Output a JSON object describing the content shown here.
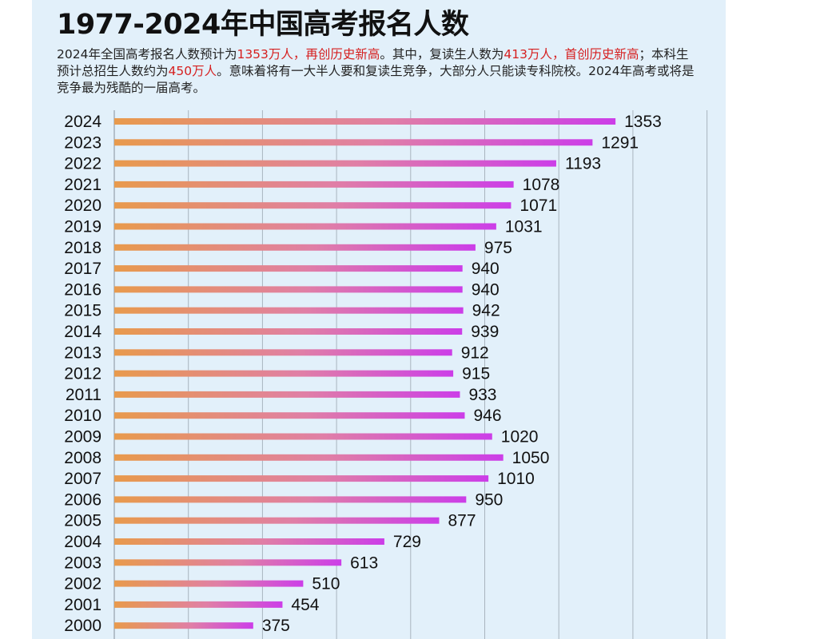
{
  "title": "1977-2024年中国高考报名人数",
  "description": {
    "parts": [
      {
        "text": "2024年全国高考报名人数预计为",
        "highlight": false
      },
      {
        "text": "1353万人，再创历史新高",
        "highlight": true
      },
      {
        "text": "。其中，复读生人数为",
        "highlight": false
      },
      {
        "text": "413万人，首创历史新高",
        "highlight": true
      },
      {
        "text": "；本科生预计总招生人数约为",
        "highlight": false
      },
      {
        "text": "450万人",
        "highlight": true
      },
      {
        "text": "。意味着将有一大半人要和复读生竞争，大部分人只能读专科院校。2024年高考或将是竞争最为残酷的一届高考。",
        "highlight": false
      }
    ]
  },
  "colors": {
    "panel_background": "#e2f0fa",
    "highlight_text": "#d61f1f",
    "bar_start": "#e89a4c",
    "bar_end": "#cc3ee8",
    "gridline": "#a9b4bf"
  },
  "chart_data": {
    "type": "bar",
    "orientation": "horizontal",
    "categories": [
      "2024",
      "2023",
      "2022",
      "2021",
      "2020",
      "2019",
      "2018",
      "2017",
      "2016",
      "2015",
      "2014",
      "2013",
      "2012",
      "2011",
      "2010",
      "2009",
      "2008",
      "2007",
      "2006",
      "2005",
      "2004",
      "2003",
      "2002",
      "2001",
      "2000"
    ],
    "values": [
      1353,
      1291,
      1193,
      1078,
      1071,
      1031,
      975,
      940,
      940,
      942,
      939,
      912,
      915,
      933,
      946,
      1020,
      1050,
      1010,
      950,
      877,
      729,
      613,
      510,
      454,
      375
    ],
    "data_labels": [
      "1353",
      "1291",
      "1193",
      "1078",
      "1071",
      "1031",
      "975",
      "940",
      "940",
      "942",
      "939",
      "912",
      "915",
      "933",
      "946",
      "1020",
      "1050",
      "1010",
      "950",
      "877",
      "729",
      "613",
      "510",
      "454",
      "375"
    ],
    "title": "1977-2024年中国高考报名人数",
    "xlabel": "",
    "ylabel": "",
    "xlim": [
      0,
      1600
    ],
    "grid": true,
    "legend": "none"
  }
}
